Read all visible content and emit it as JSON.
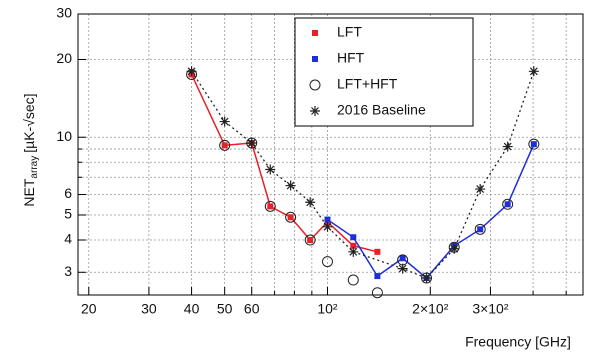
{
  "chart_data": {
    "type": "line",
    "xlabel": "Frequency [GHz]",
    "ylabel": "NET",
    "ylabel_sub": "array",
    "ylabel_unit": "[µK-√sec]",
    "xscale": "log",
    "yscale": "log",
    "grid": true,
    "xlim": [
      18.6,
      560
    ],
    "ylim": [
      2.45,
      30
    ],
    "xticks": [
      20,
      30,
      40,
      50,
      60,
      {
        "value": 100,
        "label": "10²"
      },
      {
        "value": 200,
        "label": "2×10²"
      },
      {
        "value": 300,
        "label": "3×10²"
      }
    ],
    "xminor": [
      70,
      80,
      90,
      400,
      500
    ],
    "yticks": [
      3,
      4,
      5,
      6,
      10,
      20,
      30
    ],
    "yminor": [
      7,
      8,
      9
    ],
    "series": [
      {
        "name": "LFT",
        "color": "#e8202a",
        "marker": "square",
        "line": "solid",
        "x": [
          40,
          50,
          60,
          68,
          78,
          89,
          100,
          119,
          140
        ],
        "values": [
          17.5,
          9.3,
          9.5,
          5.4,
          4.9,
          4.0,
          4.7,
          3.8,
          3.6
        ]
      },
      {
        "name": "HFT",
        "color": "#1f2fd8",
        "marker": "square",
        "line": "solid",
        "x": [
          100,
          119,
          140,
          166,
          195,
          235,
          280,
          337,
          402
        ],
        "values": [
          4.8,
          4.1,
          2.9,
          3.4,
          2.85,
          3.8,
          4.4,
          5.5,
          9.4
        ]
      },
      {
        "name": "LFT+HFT",
        "color": "#222222",
        "marker": "circle",
        "line": "none",
        "x": [
          40,
          50,
          60,
          68,
          78,
          89,
          100,
          119,
          140,
          166,
          195,
          235,
          280,
          337,
          402
        ],
        "values": [
          17.5,
          9.3,
          9.5,
          5.4,
          4.9,
          4.0,
          3.3,
          2.8,
          2.5,
          3.35,
          2.85,
          3.75,
          4.4,
          5.5,
          9.4
        ]
      },
      {
        "name": "2016 Baseline",
        "color": "#222222",
        "marker": "star",
        "line": "dotted",
        "x": [
          40,
          50,
          60,
          68,
          78,
          89,
          100,
          119,
          166,
          195,
          235,
          280,
          337,
          402
        ],
        "values": [
          18,
          11.5,
          9.5,
          7.5,
          6.5,
          5.6,
          4.5,
          3.6,
          3.1,
          2.85,
          3.7,
          6.3,
          9.2,
          18
        ]
      }
    ]
  }
}
